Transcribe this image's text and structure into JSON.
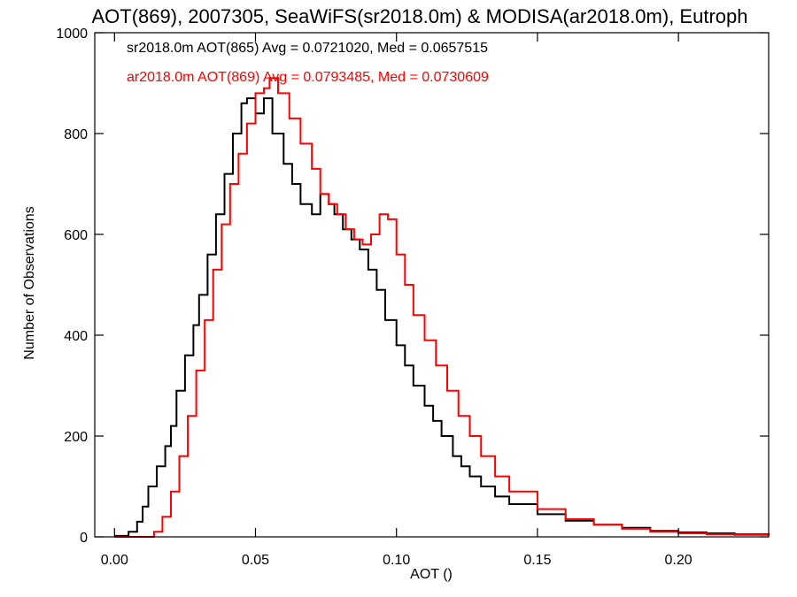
{
  "chart_data": {
    "type": "line",
    "step": true,
    "title": "AOT(869), 2007305, SeaWiFS(sr2018.0m) & MODISA(ar2018.0m), Eutroph",
    "xlabel": "AOT ()",
    "ylabel": "Number of Observations",
    "xlim": [
      -0.007,
      0.232
    ],
    "ylim": [
      0,
      1000
    ],
    "grid": false,
    "legend_position": "top-left",
    "xticks": [
      0.0,
      0.05,
      0.1,
      0.15,
      0.2
    ],
    "xtick_labels": [
      "0.00",
      "0.05",
      "0.10",
      "0.15",
      "0.20"
    ],
    "yticks": [
      0,
      200,
      400,
      600,
      800,
      1000
    ],
    "ytick_labels": [
      "0",
      "200",
      "400",
      "600",
      "800",
      "1000"
    ],
    "annotations": [
      {
        "text": "sr2018.0m AOT(865) Avg = 0.0721020, Med = 0.0657515",
        "color": "#000000"
      },
      {
        "text": "ar2018.0m AOT(869) Avg = 0.0793485, Med = 0.0730609",
        "color": "#ff0000"
      }
    ],
    "series": [
      {
        "color": "#000000",
        "x": [
          0.0,
          0.005,
          0.008,
          0.01,
          0.012,
          0.015,
          0.018,
          0.02,
          0.022,
          0.025,
          0.028,
          0.03,
          0.033,
          0.036,
          0.039,
          0.042,
          0.045,
          0.047,
          0.05,
          0.053,
          0.056,
          0.06,
          0.063,
          0.066,
          0.07,
          0.073,
          0.076,
          0.078,
          0.081,
          0.084,
          0.087,
          0.09,
          0.093,
          0.096,
          0.1,
          0.103,
          0.106,
          0.11,
          0.113,
          0.116,
          0.12,
          0.123,
          0.126,
          0.13,
          0.135,
          0.14,
          0.15,
          0.16,
          0.17,
          0.18,
          0.19,
          0.2,
          0.21,
          0.22,
          0.232
        ],
        "values": [
          2,
          10,
          30,
          60,
          100,
          140,
          180,
          220,
          290,
          360,
          420,
          480,
          560,
          640,
          720,
          800,
          860,
          870,
          840,
          870,
          800,
          740,
          700,
          660,
          640,
          680,
          660,
          640,
          610,
          590,
          570,
          530,
          490,
          430,
          380,
          340,
          300,
          260,
          230,
          200,
          160,
          140,
          120,
          100,
          80,
          65,
          45,
          32,
          24,
          18,
          12,
          9,
          7,
          5,
          3
        ]
      },
      {
        "color": "#ff0000",
        "x": [
          0.0,
          0.01,
          0.014,
          0.017,
          0.02,
          0.023,
          0.026,
          0.029,
          0.032,
          0.035,
          0.038,
          0.041,
          0.044,
          0.047,
          0.05,
          0.053,
          0.055,
          0.058,
          0.062,
          0.066,
          0.07,
          0.073,
          0.076,
          0.079,
          0.082,
          0.085,
          0.088,
          0.091,
          0.094,
          0.097,
          0.1,
          0.103,
          0.106,
          0.11,
          0.114,
          0.118,
          0.122,
          0.126,
          0.13,
          0.135,
          0.14,
          0.15,
          0.16,
          0.17,
          0.18,
          0.19,
          0.2,
          0.21,
          0.22,
          0.232
        ],
        "values": [
          0,
          0,
          10,
          40,
          90,
          160,
          240,
          330,
          430,
          530,
          620,
          700,
          760,
          820,
          880,
          890,
          910,
          880,
          830,
          780,
          730,
          680,
          660,
          640,
          610,
          590,
          580,
          600,
          640,
          630,
          560,
          500,
          440,
          390,
          340,
          290,
          240,
          200,
          160,
          120,
          90,
          55,
          35,
          24,
          16,
          10,
          7,
          5,
          4,
          3
        ]
      }
    ]
  }
}
